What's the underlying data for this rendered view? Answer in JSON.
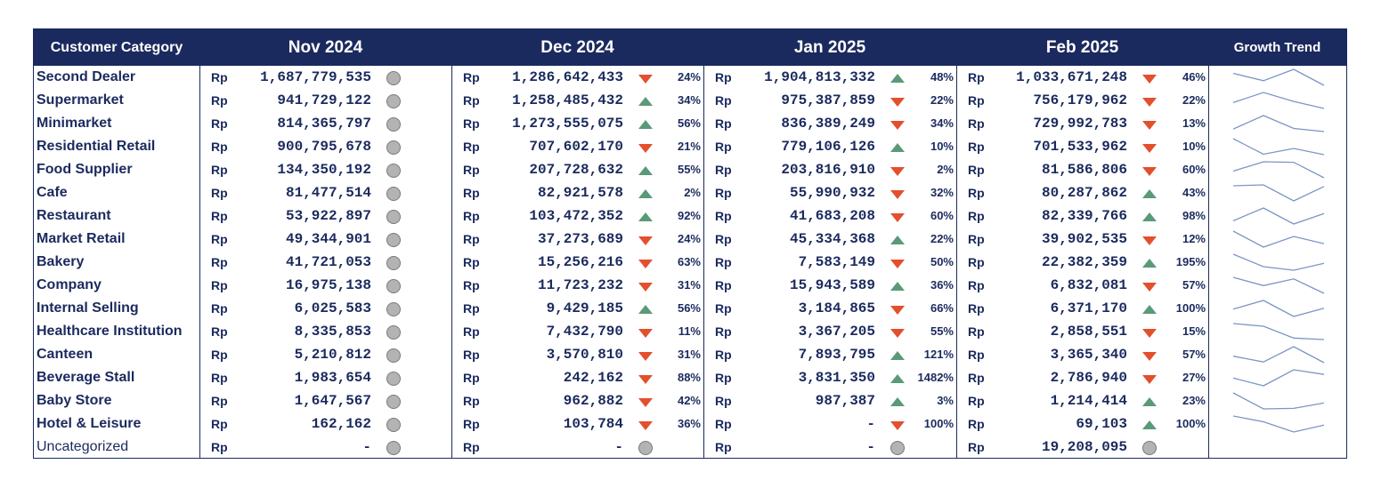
{
  "header": {
    "category": "Customer Category",
    "months": [
      "Nov 2024",
      "Dec 2024",
      "Jan 2025",
      "Feb 2025"
    ],
    "trend": "Growth Trend"
  },
  "currency": "Rp",
  "colors": {
    "header_bg": "#1b2a5e",
    "text": "#1b2a5e",
    "up": "#5a9a78",
    "down": "#e2502e",
    "neutral": "#b3b3b3",
    "spark": "#7b96c4"
  },
  "icons": {
    "up": "triangle-up-icon",
    "down": "triangle-down-icon",
    "neutral": "circle-icon"
  },
  "rows": [
    {
      "category": "Second Dealer",
      "uncategorized": false,
      "cells": [
        {
          "value": "1,687,779,535",
          "ind": "neutral",
          "pct": ""
        },
        {
          "value": "1,286,642,433",
          "ind": "down",
          "pct": "24%"
        },
        {
          "value": "1,904,813,332",
          "ind": "up",
          "pct": "48%"
        },
        {
          "value": "1,033,671,248",
          "ind": "down",
          "pct": "46%"
        }
      ],
      "trend_values": [
        1687779535,
        1286642433,
        1904813332,
        1033671248
      ]
    },
    {
      "category": "Supermarket",
      "uncategorized": false,
      "cells": [
        {
          "value": "941,729,122",
          "ind": "neutral",
          "pct": ""
        },
        {
          "value": "1,258,485,432",
          "ind": "up",
          "pct": "34%"
        },
        {
          "value": "975,387,859",
          "ind": "down",
          "pct": "22%"
        },
        {
          "value": "756,179,962",
          "ind": "down",
          "pct": "22%"
        }
      ],
      "trend_values": [
        941729122,
        1258485432,
        975387859,
        756179962
      ]
    },
    {
      "category": "Minimarket",
      "uncategorized": false,
      "cells": [
        {
          "value": "814,365,797",
          "ind": "neutral",
          "pct": ""
        },
        {
          "value": "1,273,555,075",
          "ind": "up",
          "pct": "56%"
        },
        {
          "value": "836,389,249",
          "ind": "down",
          "pct": "34%"
        },
        {
          "value": "729,992,783",
          "ind": "down",
          "pct": "13%"
        }
      ],
      "trend_values": [
        814365797,
        1273555075,
        836389249,
        729992783
      ]
    },
    {
      "category": "Residential Retail",
      "uncategorized": false,
      "cells": [
        {
          "value": "900,795,678",
          "ind": "neutral",
          "pct": ""
        },
        {
          "value": "707,602,170",
          "ind": "down",
          "pct": "21%"
        },
        {
          "value": "779,106,126",
          "ind": "up",
          "pct": "10%"
        },
        {
          "value": "701,533,962",
          "ind": "down",
          "pct": "10%"
        }
      ],
      "trend_values": [
        900795678,
        707602170,
        779106126,
        701533962
      ]
    },
    {
      "category": "Food Supplier",
      "uncategorized": false,
      "cells": [
        {
          "value": "134,350,192",
          "ind": "neutral",
          "pct": ""
        },
        {
          "value": "207,728,632",
          "ind": "up",
          "pct": "55%"
        },
        {
          "value": "203,816,910",
          "ind": "down",
          "pct": "2%"
        },
        {
          "value": "81,586,806",
          "ind": "down",
          "pct": "60%"
        }
      ],
      "trend_values": [
        134350192,
        207728632,
        203816910,
        81586806
      ]
    },
    {
      "category": "Cafe",
      "uncategorized": false,
      "cells": [
        {
          "value": "81,477,514",
          "ind": "neutral",
          "pct": ""
        },
        {
          "value": "82,921,578",
          "ind": "up",
          "pct": "2%"
        },
        {
          "value": "55,990,932",
          "ind": "down",
          "pct": "32%"
        },
        {
          "value": "80,287,862",
          "ind": "up",
          "pct": "43%"
        }
      ],
      "trend_values": [
        81477514,
        82921578,
        55990932,
        80287862
      ]
    },
    {
      "category": "Restaurant",
      "uncategorized": false,
      "cells": [
        {
          "value": "53,922,897",
          "ind": "neutral",
          "pct": ""
        },
        {
          "value": "103,472,352",
          "ind": "up",
          "pct": "92%"
        },
        {
          "value": "41,683,208",
          "ind": "down",
          "pct": "60%"
        },
        {
          "value": "82,339,766",
          "ind": "up",
          "pct": "98%"
        }
      ],
      "trend_values": [
        53922897,
        103472352,
        41683208,
        82339766
      ]
    },
    {
      "category": "Market Retail",
      "uncategorized": false,
      "cells": [
        {
          "value": "49,344,901",
          "ind": "neutral",
          "pct": ""
        },
        {
          "value": "37,273,689",
          "ind": "down",
          "pct": "24%"
        },
        {
          "value": "45,334,368",
          "ind": "up",
          "pct": "22%"
        },
        {
          "value": "39,902,535",
          "ind": "down",
          "pct": "12%"
        }
      ],
      "trend_values": [
        49344901,
        37273689,
        45334368,
        39902535
      ]
    },
    {
      "category": "Bakery",
      "uncategorized": false,
      "cells": [
        {
          "value": "41,721,053",
          "ind": "neutral",
          "pct": ""
        },
        {
          "value": "15,256,216",
          "ind": "down",
          "pct": "63%"
        },
        {
          "value": "7,583,149",
          "ind": "down",
          "pct": "50%"
        },
        {
          "value": "22,382,359",
          "ind": "up",
          "pct": "195%"
        }
      ],
      "trend_values": [
        41721053,
        15256216,
        7583149,
        22382359
      ]
    },
    {
      "category": "Company",
      "uncategorized": false,
      "cells": [
        {
          "value": "16,975,138",
          "ind": "neutral",
          "pct": ""
        },
        {
          "value": "11,723,232",
          "ind": "down",
          "pct": "31%"
        },
        {
          "value": "15,943,589",
          "ind": "up",
          "pct": "36%"
        },
        {
          "value": "6,832,081",
          "ind": "down",
          "pct": "57%"
        }
      ],
      "trend_values": [
        16975138,
        11723232,
        15943589,
        6832081
      ]
    },
    {
      "category": "Internal Selling",
      "uncategorized": false,
      "cells": [
        {
          "value": "6,025,583",
          "ind": "neutral",
          "pct": ""
        },
        {
          "value": "9,429,185",
          "ind": "up",
          "pct": "56%"
        },
        {
          "value": "3,184,865",
          "ind": "down",
          "pct": "66%"
        },
        {
          "value": "6,371,170",
          "ind": "up",
          "pct": "100%"
        }
      ],
      "trend_values": [
        6025583,
        9429185,
        3184865,
        6371170
      ]
    },
    {
      "category": "Healthcare Institution",
      "uncategorized": false,
      "cells": [
        {
          "value": "8,335,853",
          "ind": "neutral",
          "pct": ""
        },
        {
          "value": "7,432,790",
          "ind": "down",
          "pct": "11%"
        },
        {
          "value": "3,367,205",
          "ind": "down",
          "pct": "55%"
        },
        {
          "value": "2,858,551",
          "ind": "down",
          "pct": "15%"
        }
      ],
      "trend_values": [
        8335853,
        7432790,
        3367205,
        2858551
      ]
    },
    {
      "category": "Canteen",
      "uncategorized": false,
      "cells": [
        {
          "value": "5,210,812",
          "ind": "neutral",
          "pct": ""
        },
        {
          "value": "3,570,810",
          "ind": "down",
          "pct": "31%"
        },
        {
          "value": "7,893,795",
          "ind": "up",
          "pct": "121%"
        },
        {
          "value": "3,365,340",
          "ind": "down",
          "pct": "57%"
        }
      ],
      "trend_values": [
        5210812,
        3570810,
        7893795,
        3365340
      ]
    },
    {
      "category": "Beverage Stall",
      "uncategorized": false,
      "cells": [
        {
          "value": "1,983,654",
          "ind": "neutral",
          "pct": ""
        },
        {
          "value": "242,162",
          "ind": "down",
          "pct": "88%"
        },
        {
          "value": "3,831,350",
          "ind": "up",
          "pct": "1482%"
        },
        {
          "value": "2,786,940",
          "ind": "down",
          "pct": "27%"
        }
      ],
      "trend_values": [
        1983654,
        242162,
        3831350,
        2786940
      ]
    },
    {
      "category": "Baby Store",
      "uncategorized": false,
      "cells": [
        {
          "value": "1,647,567",
          "ind": "neutral",
          "pct": ""
        },
        {
          "value": "962,882",
          "ind": "down",
          "pct": "42%"
        },
        {
          "value": "987,387",
          "ind": "up",
          "pct": "3%"
        },
        {
          "value": "1,214,414",
          "ind": "up",
          "pct": "23%"
        }
      ],
      "trend_values": [
        1647567,
        962882,
        987387,
        1214414
      ]
    },
    {
      "category": "Hotel & Leisure",
      "uncategorized": false,
      "cells": [
        {
          "value": "162,162",
          "ind": "neutral",
          "pct": ""
        },
        {
          "value": "103,784",
          "ind": "down",
          "pct": "36%"
        },
        {
          "value": "-",
          "ind": "down",
          "pct": "100%"
        },
        {
          "value": "69,103",
          "ind": "up",
          "pct": "100%"
        }
      ],
      "trend_values": [
        162162,
        103784,
        0,
        69103
      ]
    },
    {
      "category": "Uncategorized",
      "uncategorized": true,
      "cells": [
        {
          "value": "-",
          "ind": "neutral",
          "pct": ""
        },
        {
          "value": "-",
          "ind": "neutral",
          "pct": ""
        },
        {
          "value": "-",
          "ind": "neutral",
          "pct": ""
        },
        {
          "value": "19,208,095",
          "ind": "neutral",
          "pct": ""
        }
      ],
      "trend_values": null
    }
  ]
}
